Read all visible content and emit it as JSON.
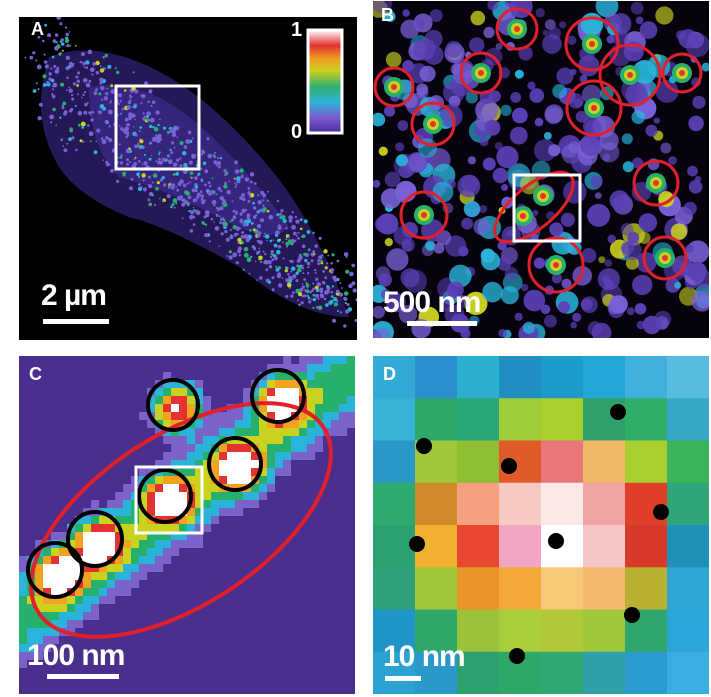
{
  "panels": {
    "a": {
      "label": "A",
      "scalebar": "2 µm"
    },
    "b": {
      "label": "B",
      "scalebar": "500 nm"
    },
    "c": {
      "label": "C",
      "scalebar": "100 nm"
    },
    "d": {
      "label": "D",
      "scalebar": "10 nm"
    }
  },
  "colorbar": {
    "max_label": "1",
    "min_label": "0"
  },
  "colors": {
    "background": "#000000",
    "circle_red": "#e0202a",
    "circle_black": "#000000",
    "box": "#ffffff"
  }
}
